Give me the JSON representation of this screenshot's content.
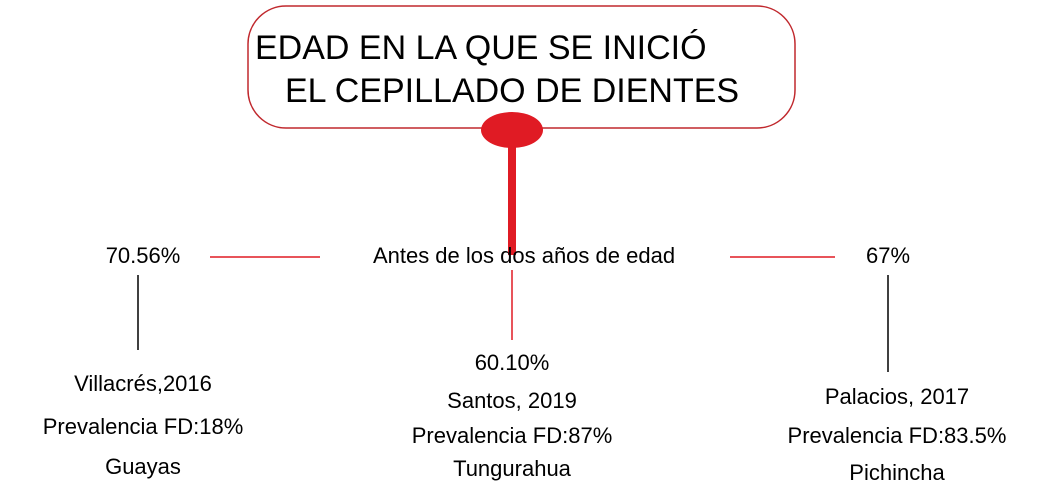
{
  "title": {
    "lines": [
      "EDAD EN LA QUE SE INICIÓ",
      "EL CEPILLADO DE DIENTES"
    ]
  },
  "center": {
    "label": "Antes de los dos años de edad"
  },
  "branches": [
    {
      "percent": "70.56%",
      "lines": [
        "Villacrés,2016",
        "Prevalencia FD:18%",
        "Guayas"
      ]
    },
    {
      "percent": "60.10%",
      "lines": [
        "Santos, 2019",
        "Prevalencia FD:87%",
        "Tungurahua"
      ]
    },
    {
      "percent": "67%",
      "lines": [
        "Palacios, 2017",
        "Prevalencia FD:83.5%",
        "Pichincha"
      ]
    }
  ]
}
